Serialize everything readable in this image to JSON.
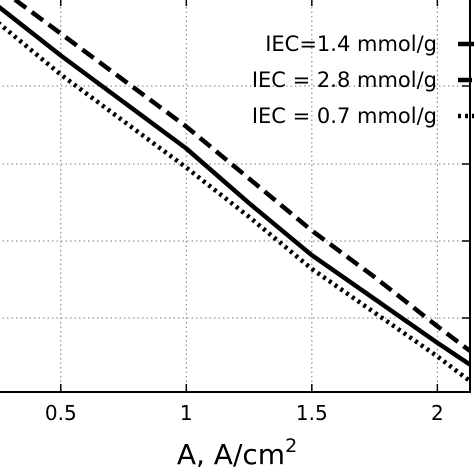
{
  "chart_data": {
    "type": "line",
    "xlabel": "A, A/cm",
    "xlabel_superscript": "2",
    "ylabel": "",
    "x_ticks": [
      0.5,
      1,
      1.5,
      2
    ],
    "x_tick_labels": [
      "0.5",
      "1",
      "1.5",
      "2"
    ],
    "xlim": [
      0.25,
      2.13
    ],
    "ylim": [
      0.28,
      1.0
    ],
    "grid": true,
    "legend_position": "top-right",
    "series": [
      {
        "name": "IEC=1.4 mmol/g",
        "style": "solid",
        "color": "#000000",
        "points": [
          [
            0.25,
            0.985
          ],
          [
            0.5,
            0.895
          ],
          [
            0.75,
            0.81
          ],
          [
            1.0,
            0.725
          ],
          [
            1.25,
            0.625
          ],
          [
            1.5,
            0.53
          ],
          [
            1.75,
            0.45
          ],
          [
            2.0,
            0.37
          ],
          [
            2.13,
            0.33
          ]
        ]
      },
      {
        "name": "IEC = 2.8  mmol/g",
        "style": "dashed",
        "color": "#000000",
        "points": [
          [
            0.25,
            1.02
          ],
          [
            0.5,
            0.935
          ],
          [
            0.75,
            0.85
          ],
          [
            1.0,
            0.765
          ],
          [
            1.25,
            0.67
          ],
          [
            1.5,
            0.575
          ],
          [
            1.75,
            0.49
          ],
          [
            2.0,
            0.4
          ],
          [
            2.13,
            0.355
          ]
        ]
      },
      {
        "name": "IEC = 0.7  mmol/g",
        "style": "dotted",
        "color": "#000000",
        "points": [
          [
            0.25,
            0.955
          ],
          [
            0.5,
            0.86
          ],
          [
            0.75,
            0.775
          ],
          [
            1.0,
            0.69
          ],
          [
            1.25,
            0.6
          ],
          [
            1.5,
            0.505
          ],
          [
            1.75,
            0.425
          ],
          [
            2.0,
            0.345
          ],
          [
            2.13,
            0.3
          ]
        ]
      }
    ]
  }
}
